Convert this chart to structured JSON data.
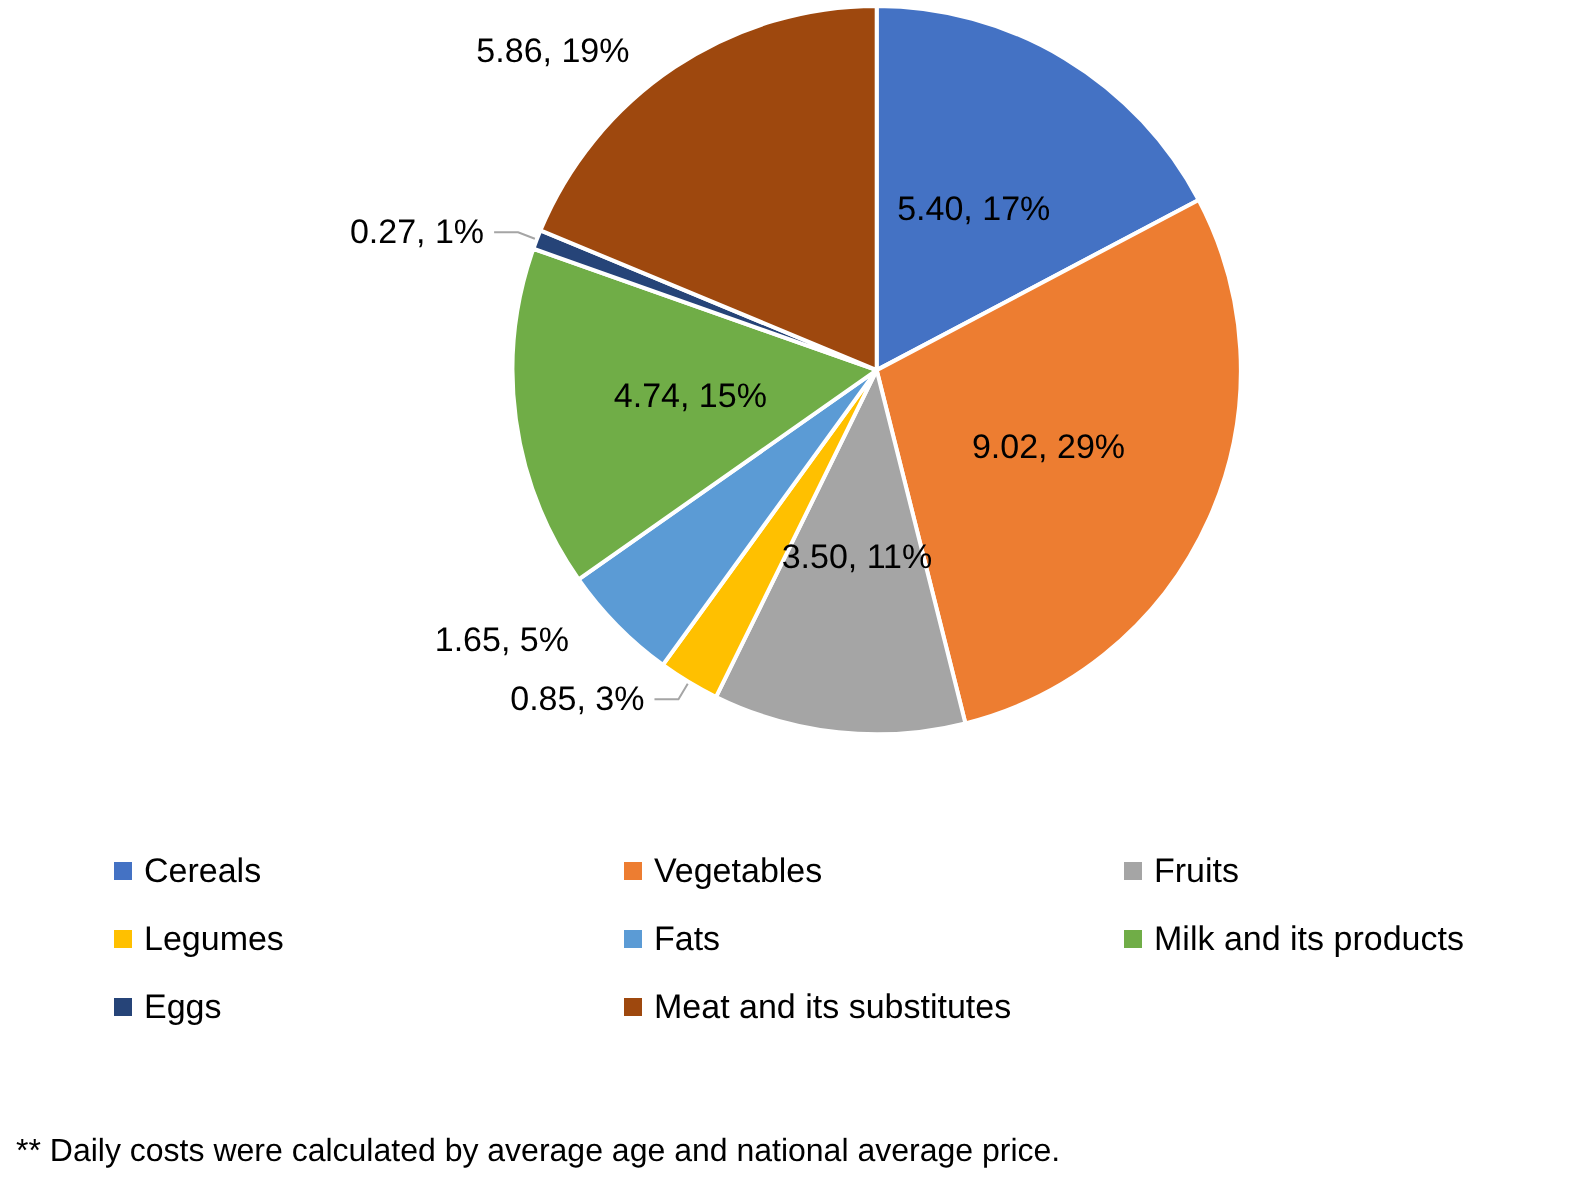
{
  "chart_data": {
    "type": "pie",
    "categories": [
      "Cereals",
      "Vegetables",
      "Fruits",
      "Legumes",
      "Fats",
      "Milk and its products",
      "Eggs",
      "Meat and its substitutes"
    ],
    "values": [
      5.4,
      9.02,
      3.5,
      0.85,
      1.65,
      4.74,
      0.27,
      5.86
    ],
    "colors": [
      "#4472c4",
      "#ed7d31",
      "#a5a5a5",
      "#ffc000",
      "#5b9bd5",
      "#70ad47",
      "#264478",
      "#9e480e"
    ],
    "value_labels": [
      "5.40, 17%",
      "9.02, 29%",
      "3.50, 11%",
      "0.85, 3%",
      "1.65, 5%",
      "4.74, 15%",
      "0.27, 1%",
      "5.86, 19%"
    ],
    "legend": "bottom",
    "annotations": [
      "** Daily costs were calculated by average age and national average price."
    ]
  }
}
